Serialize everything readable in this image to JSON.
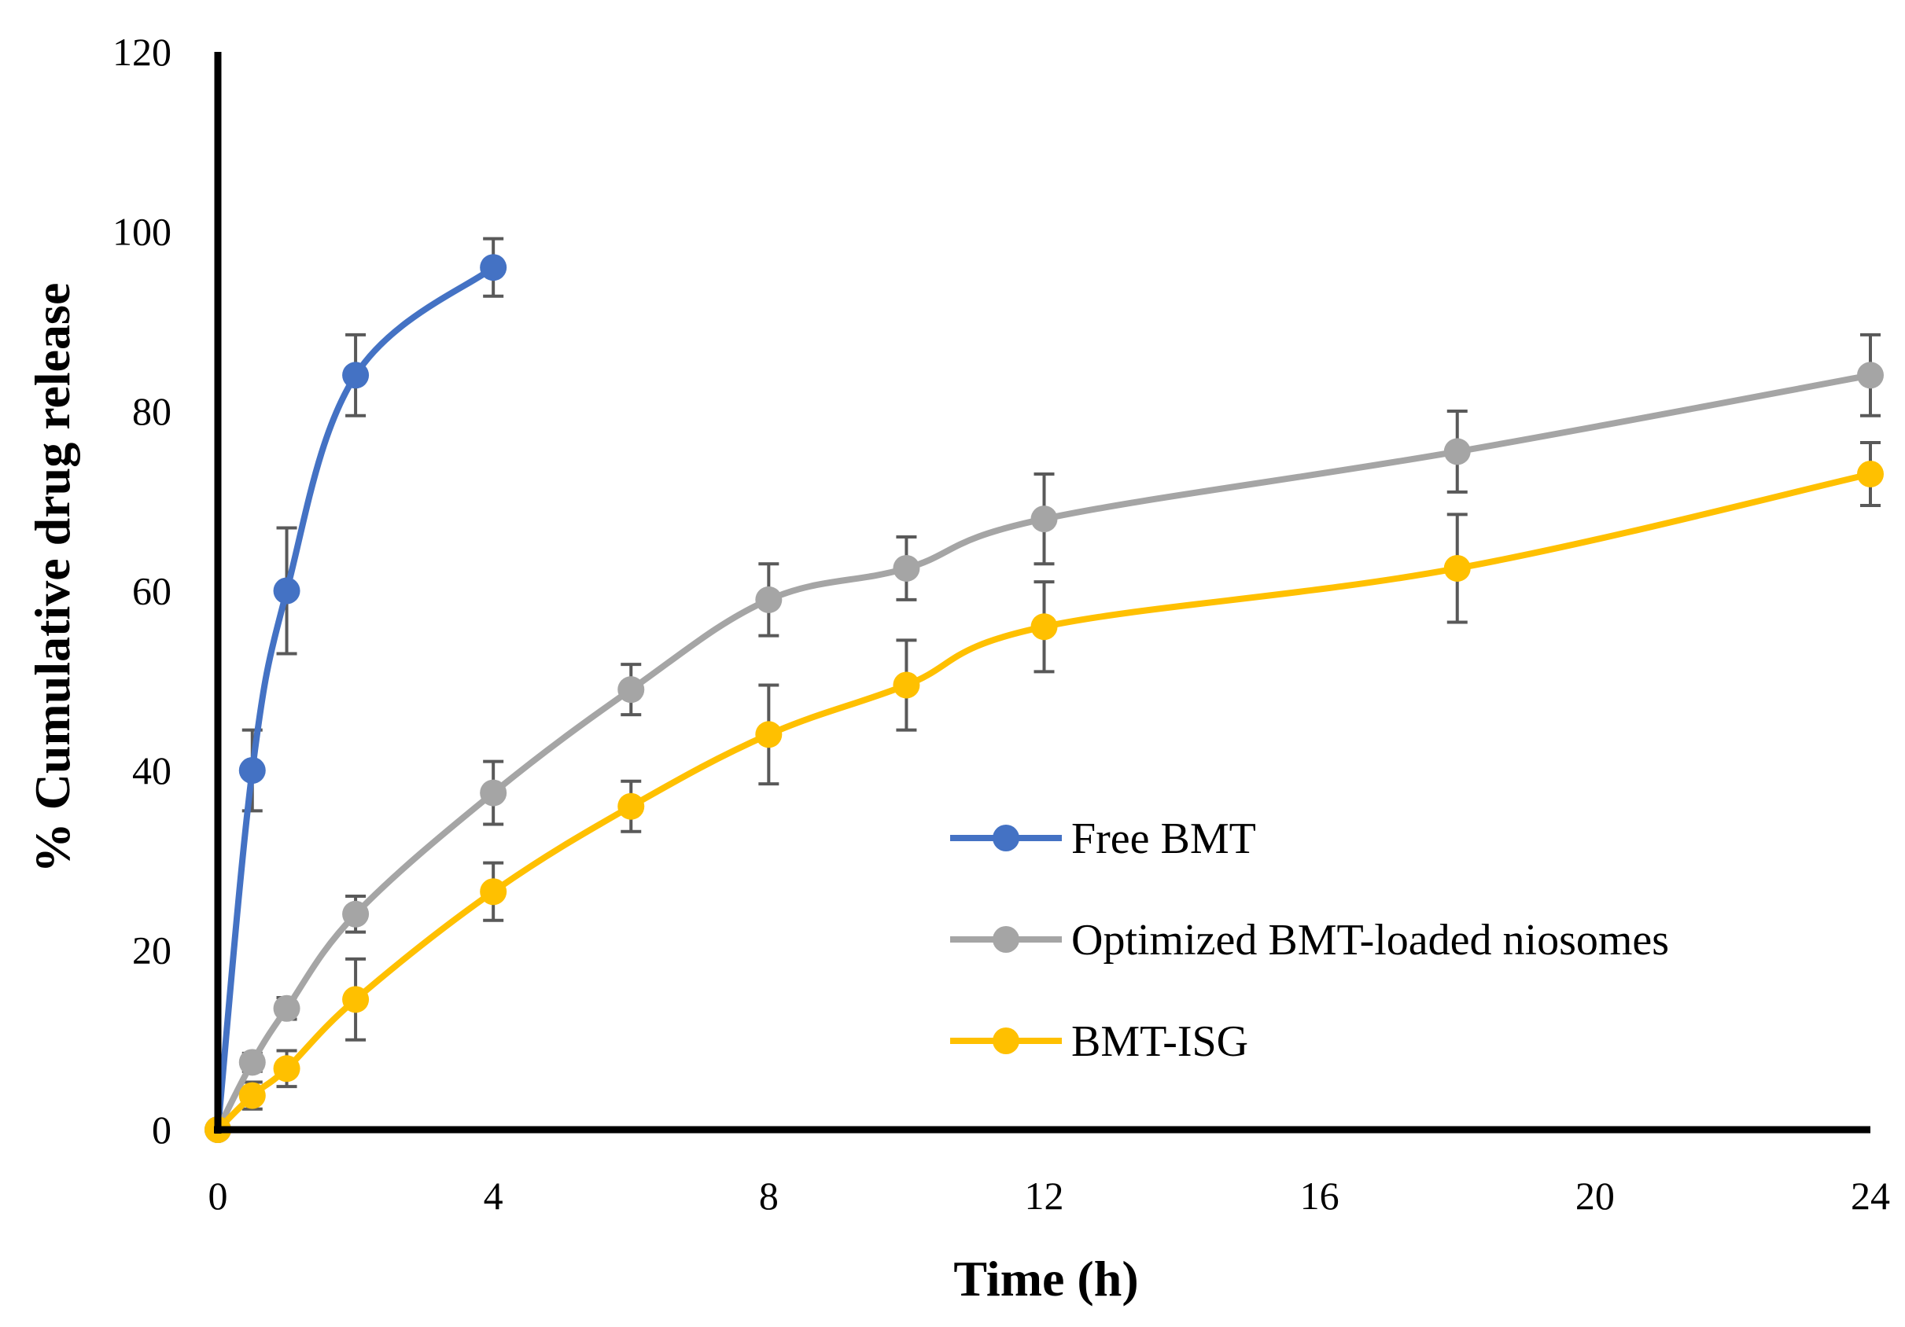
{
  "chart_data": {
    "type": "line",
    "title": "",
    "xlabel": "Time (h)",
    "ylabel": "% Cumulative drug release",
    "xlim": [
      0,
      24
    ],
    "ylim": [
      0,
      120
    ],
    "x_ticks": [
      0,
      4,
      8,
      12,
      16,
      20,
      24
    ],
    "y_ticks": [
      0,
      20,
      40,
      60,
      80,
      100,
      120
    ],
    "grid": false,
    "legend_position": "right",
    "series": [
      {
        "name": "Free BMT",
        "color": "#4472c4",
        "x": [
          0,
          0.5,
          1,
          2,
          4
        ],
        "y": [
          0,
          40,
          60,
          84,
          96
        ],
        "error": [
          0,
          4.5,
          7,
          4.5,
          3.2
        ]
      },
      {
        "name": "Optimized BMT-loaded niosomes",
        "color": "#a5a5a5",
        "x": [
          0,
          0.5,
          1,
          2,
          4,
          6,
          8,
          10,
          12,
          18,
          24
        ],
        "y": [
          0,
          7.5,
          13.5,
          24,
          37.5,
          49,
          59,
          62.5,
          68,
          75.5,
          84
        ],
        "error": [
          0,
          1,
          1.2,
          2,
          3.5,
          2.8,
          4,
          3.5,
          5,
          4.5,
          4.5
        ]
      },
      {
        "name": "BMT-ISG",
        "color": "#ffc000",
        "x": [
          0,
          0.5,
          1,
          2,
          4,
          6,
          8,
          10,
          12,
          18,
          24
        ],
        "y": [
          0,
          3.8,
          6.8,
          14.5,
          26.5,
          36,
          44,
          49.5,
          56,
          62.5,
          73
        ],
        "error": [
          0,
          1.5,
          2,
          4.5,
          3.2,
          2.8,
          5.5,
          5,
          5,
          6,
          3.5
        ]
      }
    ]
  }
}
